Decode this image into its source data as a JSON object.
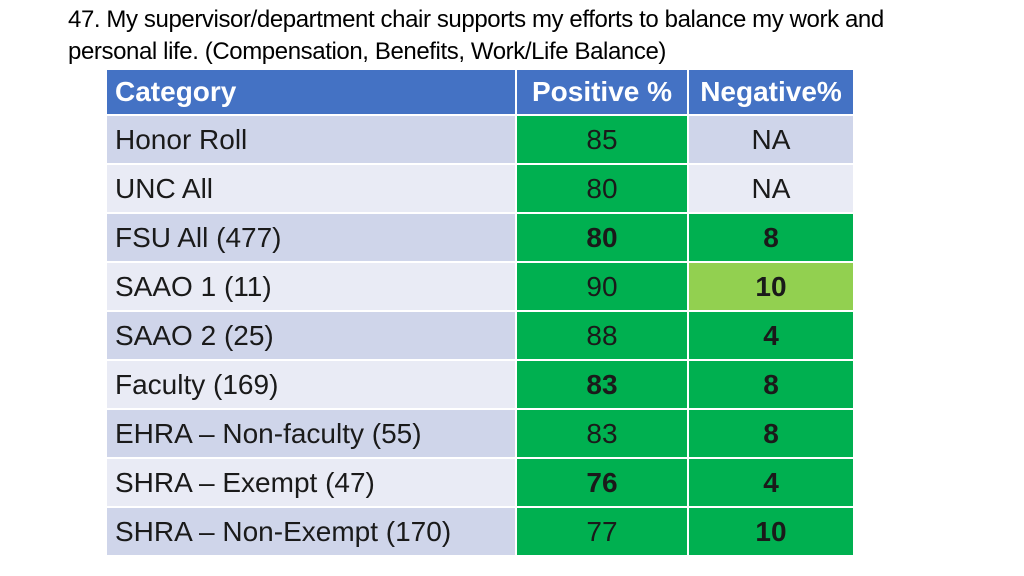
{
  "title": "47. My supervisor/department chair supports my efforts to balance my work and personal life. (Compensation, Benefits, Work/Life Balance)",
  "colors": {
    "header_blue": "#4472c4",
    "row_dark": "#cfd5ea",
    "row_light": "#e9ebf5",
    "green": "#00b050",
    "light_green": "#92d050"
  },
  "table": {
    "headers": [
      "Category",
      "Positive %",
      "Negative%"
    ],
    "rows": [
      {
        "category": "Honor Roll",
        "positive": "85",
        "negative": "NA",
        "pos_style": "green",
        "neg_style": "plain",
        "pos_bold": false,
        "neg_bold": false
      },
      {
        "category": "UNC All",
        "positive": "80",
        "negative": "NA",
        "pos_style": "green",
        "neg_style": "plain",
        "pos_bold": false,
        "neg_bold": false
      },
      {
        "category": "FSU All (477)",
        "positive": "80",
        "negative": "8",
        "pos_style": "green",
        "neg_style": "green",
        "pos_bold": true,
        "neg_bold": true
      },
      {
        "category": "SAAO 1 (11)",
        "positive": "90",
        "negative": "10",
        "pos_style": "green",
        "neg_style": "lightgreen",
        "pos_bold": false,
        "neg_bold": true
      },
      {
        "category": "SAAO 2 (25)",
        "positive": "88",
        "negative": "4",
        "pos_style": "green",
        "neg_style": "green",
        "pos_bold": false,
        "neg_bold": true
      },
      {
        "category": "Faculty (169)",
        "positive": "83",
        "negative": "8",
        "pos_style": "green",
        "neg_style": "green",
        "pos_bold": true,
        "neg_bold": true
      },
      {
        "category": "EHRA – Non-faculty (55)",
        "positive": "83",
        "negative": "8",
        "pos_style": "green",
        "neg_style": "green",
        "pos_bold": false,
        "neg_bold": true
      },
      {
        "category": "SHRA – Exempt (47)",
        "positive": "76",
        "negative": "4",
        "pos_style": "green",
        "neg_style": "green",
        "pos_bold": true,
        "neg_bold": true
      },
      {
        "category": "SHRA – Non-Exempt (170)",
        "positive": "77",
        "negative": "10",
        "pos_style": "green",
        "neg_style": "green",
        "pos_bold": false,
        "neg_bold": true
      }
    ]
  }
}
